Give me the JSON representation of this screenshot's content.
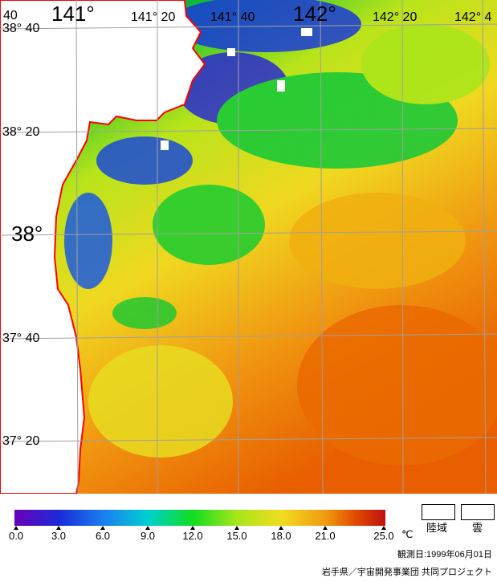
{
  "lon_labels": [
    "141°",
    "141° 20",
    "141° 40",
    "142°",
    "142° 20",
    "142° 4"
  ],
  "lat_labels": [
    "38° 40",
    "38° 20",
    "38°",
    "37° 40",
    "37° 20"
  ],
  "corner_label": "40",
  "colorbar": {
    "ticks": [
      "0.0",
      "3.0",
      "6.0",
      "9.0",
      "12.0",
      "15.0",
      "18.0",
      "21.0",
      "25.0"
    ],
    "unit": "℃",
    "colors": [
      "#6a00b8",
      "#1a2bd8",
      "#1a7ff0",
      "#00d0d0",
      "#10dd20",
      "#a8e61a",
      "#f0dc20",
      "#f09a10",
      "#e04a00",
      "#c01010"
    ]
  },
  "legend": {
    "land_label": "陸域",
    "cloud_label": "雲"
  },
  "observation_date": "観測日:1999年06月01日",
  "credit": "岩手県／宇宙開発事業団 共同プロジェクト"
}
